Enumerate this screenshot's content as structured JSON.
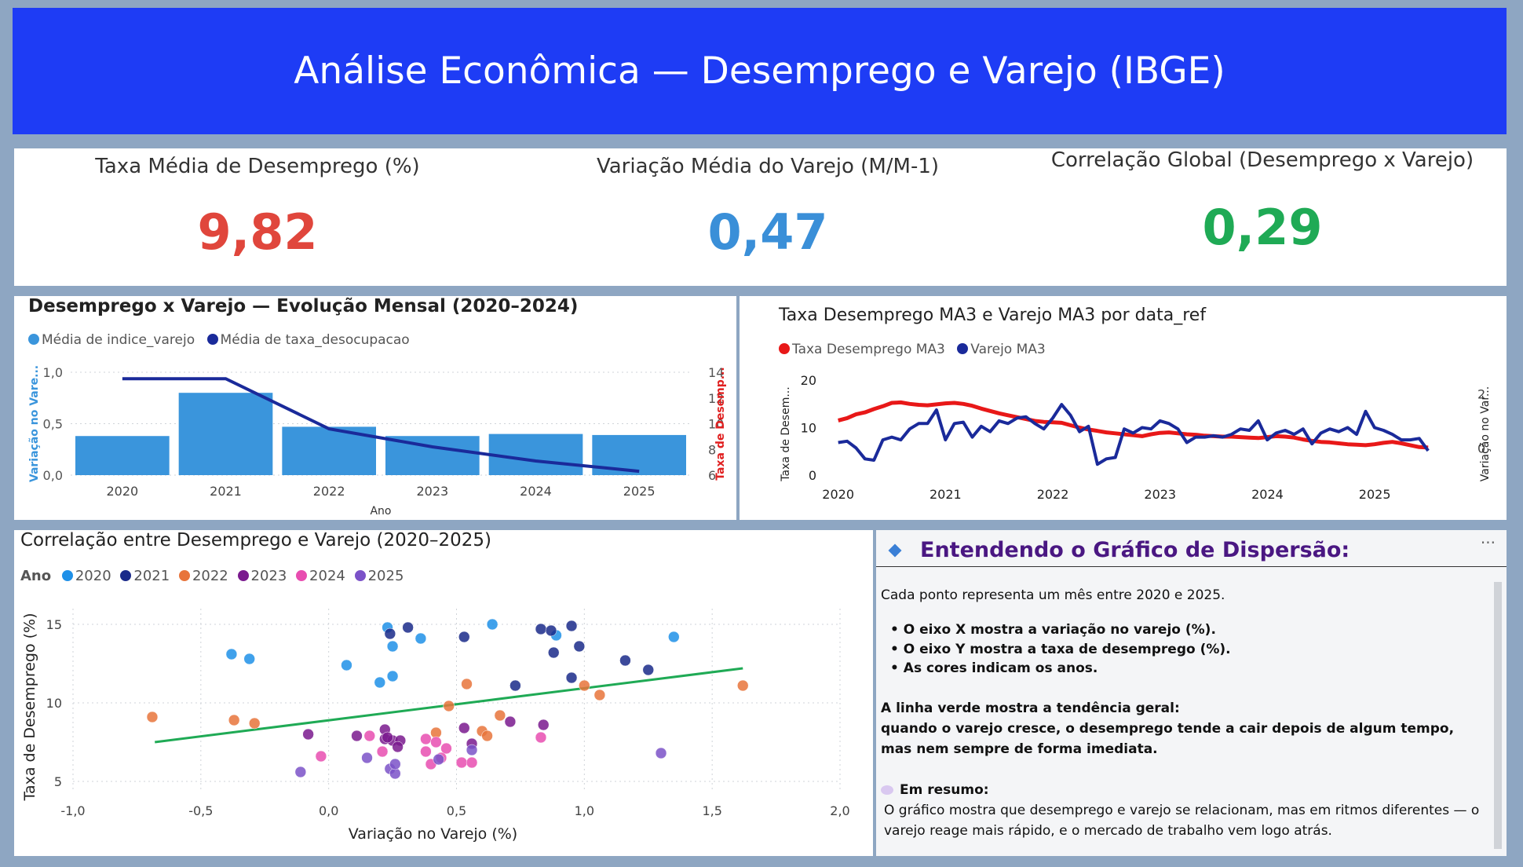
{
  "header": {
    "title": "Análise Econômica — Desemprego e Varejo (IBGE)"
  },
  "kpis": [
    {
      "label": "Taxa Média de Desemprego (%)",
      "value": "9,82",
      "color": "#e0463c"
    },
    {
      "label": "Variação Média do Varejo (M/M-1)",
      "value": "0,47",
      "color": "#3a8fd8"
    },
    {
      "label": "Correlação Global (Desemprego x Varejo)",
      "value": "0,29",
      "color": "#1faa55"
    }
  ],
  "chart_data": [
    {
      "type": "bar",
      "title": "Desemprego x Varejo — Evolução Mensal (2020–2024)",
      "legend": [
        "Média de indice_varejo",
        "Média de taxa_desocupacao"
      ],
      "xlabel": "Ano",
      "ylabel": "Variação no Vare...",
      "y2label": "Taxa de Desemp...",
      "categories": [
        "2020",
        "2021",
        "2022",
        "2023",
        "2024",
        "2025"
      ],
      "series": [
        {
          "name": "Média de indice_varejo",
          "type": "bar",
          "axis": "left",
          "color": "#3a95dc",
          "values": [
            0.38,
            0.8,
            0.47,
            0.38,
            0.4,
            0.39
          ]
        },
        {
          "name": "Média de taxa_desocupacao",
          "type": "line",
          "axis": "right",
          "color": "#1a2a9a",
          "values": [
            13.5,
            13.5,
            9.6,
            8.2,
            7.1,
            6.3
          ]
        }
      ],
      "ylim": [
        0,
        1
      ],
      "y2lim": [
        6,
        14
      ],
      "yticks": [
        "0,0",
        "0,5",
        "1,0"
      ],
      "y2ticks": [
        "6",
        "8",
        "10",
        "12",
        "14"
      ]
    },
    {
      "type": "line",
      "title": "Taxa Desemprego MA3 e Varejo MA3 por data_ref",
      "legend": [
        "Taxa Desemprego MA3",
        "Varejo MA3"
      ],
      "ylabel": "Taxa de Desem...",
      "y2label": "Variação no Var...",
      "xticks": [
        "2020",
        "2021",
        "2022",
        "2023",
        "2024",
        "2025"
      ],
      "yticks": [
        "0",
        "10",
        "20"
      ],
      "y2ticks": [
        "0",
        "2"
      ],
      "ylim": [
        0,
        20
      ],
      "y2lim": [
        -1,
        2.5
      ],
      "x_start": 2020.0,
      "x_step": 0.0833,
      "series": [
        {
          "name": "Taxa Desemprego MA3",
          "axis": "left",
          "color": "#e81818",
          "values": [
            11.5,
            12.0,
            12.8,
            13.2,
            13.9,
            14.5,
            15.2,
            15.3,
            15.0,
            14.8,
            14.7,
            14.9,
            15.1,
            15.2,
            15.0,
            14.6,
            14.0,
            13.5,
            13.0,
            12.6,
            12.2,
            11.8,
            11.4,
            11.2,
            11.1,
            11.0,
            10.5,
            10.0,
            9.6,
            9.3,
            9.0,
            8.8,
            8.6,
            8.4,
            8.2,
            8.6,
            8.9,
            9.0,
            8.8,
            8.6,
            8.5,
            8.3,
            8.2,
            8.1,
            8.1,
            8.0,
            7.9,
            7.8,
            8.0,
            8.2,
            8.1,
            7.9,
            7.5,
            7.2,
            7.0,
            6.9,
            6.7,
            6.5,
            6.4,
            6.3,
            6.5,
            6.8,
            7.0,
            6.7,
            6.3,
            5.9,
            5.8
          ]
        },
        {
          "name": "Varejo MA3",
          "axis": "right",
          "color": "#1a2a9a",
          "values": [
            0.2,
            0.25,
            0.0,
            -0.4,
            -0.45,
            0.3,
            0.4,
            0.3,
            0.7,
            0.9,
            0.9,
            1.4,
            0.3,
            0.9,
            0.95,
            0.4,
            0.8,
            0.6,
            1.0,
            0.9,
            1.1,
            1.15,
            0.9,
            0.7,
            1.1,
            1.6,
            1.2,
            0.6,
            0.8,
            -0.6,
            -0.4,
            -0.35,
            0.7,
            0.55,
            0.75,
            0.7,
            1.0,
            0.9,
            0.7,
            0.2,
            0.4,
            0.4,
            0.45,
            0.4,
            0.5,
            0.7,
            0.65,
            1.0,
            0.3,
            0.55,
            0.65,
            0.5,
            0.7,
            0.15,
            0.55,
            0.7,
            0.6,
            0.75,
            0.5,
            1.35,
            0.75,
            0.65,
            0.5,
            0.3,
            0.3,
            0.35,
            -0.1
          ]
        }
      ]
    },
    {
      "type": "scatter",
      "title": "Correlação entre Desemprego e Varejo (2020–2025)",
      "legend_title": "Ano",
      "xlabel": "Variação no Varejo (%)",
      "ylabel": "Taxa de Desemprego (%)",
      "xlim": [
        -1.0,
        2.0
      ],
      "ylim": [
        4.5,
        16
      ],
      "xticks": [
        "-1,0",
        "-0,5",
        "0,0",
        "0,5",
        "1,0",
        "1,5",
        "2,0"
      ],
      "yticks": [
        "5",
        "10",
        "15"
      ],
      "trendline": {
        "color": "#1faa55",
        "from": [
          -0.68,
          7.5
        ],
        "to": [
          1.62,
          12.2
        ]
      },
      "series": [
        {
          "name": "2020",
          "color": "#1e90e8",
          "points": [
            [
              -0.38,
              13.1
            ],
            [
              -0.31,
              12.8
            ],
            [
              0.07,
              12.4
            ],
            [
              0.23,
              14.8
            ],
            [
              0.25,
              13.6
            ],
            [
              0.36,
              14.1
            ],
            [
              0.2,
              11.3
            ],
            [
              0.25,
              11.7
            ],
            [
              0.64,
              15.0
            ],
            [
              0.89,
              14.3
            ],
            [
              1.35,
              14.2
            ]
          ]
        },
        {
          "name": "2021",
          "color": "#1a2a8a",
          "points": [
            [
              0.24,
              14.4
            ],
            [
              0.31,
              14.8
            ],
            [
              0.53,
              14.2
            ],
            [
              0.83,
              14.7
            ],
            [
              0.87,
              14.6
            ],
            [
              0.95,
              14.9
            ],
            [
              0.98,
              13.6
            ],
            [
              0.88,
              13.2
            ],
            [
              1.16,
              12.7
            ],
            [
              1.25,
              12.1
            ],
            [
              0.73,
              11.1
            ],
            [
              0.95,
              11.6
            ]
          ]
        },
        {
          "name": "2022",
          "color": "#e8743b",
          "points": [
            [
              -0.69,
              9.1
            ],
            [
              -0.37,
              8.9
            ],
            [
              -0.29,
              8.7
            ],
            [
              0.47,
              9.8
            ],
            [
              0.54,
              11.2
            ],
            [
              0.67,
              9.2
            ],
            [
              1.0,
              11.1
            ],
            [
              1.06,
              10.5
            ],
            [
              1.62,
              11.1
            ],
            [
              0.42,
              8.1
            ],
            [
              0.6,
              8.2
            ],
            [
              0.62,
              7.9
            ]
          ]
        },
        {
          "name": "2023",
          "color": "#7a1a8e",
          "points": [
            [
              -0.08,
              8.0
            ],
            [
              0.11,
              7.9
            ],
            [
              0.22,
              8.3
            ],
            [
              0.22,
              7.7
            ],
            [
              0.25,
              7.6
            ],
            [
              0.28,
              7.6
            ],
            [
              0.53,
              8.4
            ],
            [
              0.56,
              7.4
            ],
            [
              0.71,
              8.8
            ],
            [
              0.84,
              8.6
            ],
            [
              0.27,
              7.2
            ],
            [
              0.23,
              7.8
            ]
          ]
        },
        {
          "name": "2024",
          "color": "#e84db0",
          "points": [
            [
              -0.03,
              6.6
            ],
            [
              0.16,
              7.9
            ],
            [
              0.21,
              6.9
            ],
            [
              0.38,
              7.7
            ],
            [
              0.38,
              6.9
            ],
            [
              0.4,
              6.1
            ],
            [
              0.42,
              7.5
            ],
            [
              0.46,
              7.1
            ],
            [
              0.52,
              6.2
            ],
            [
              0.56,
              6.2
            ],
            [
              0.83,
              7.8
            ],
            [
              0.44,
              6.5
            ]
          ]
        },
        {
          "name": "2025",
          "color": "#7b52c8",
          "points": [
            [
              -0.11,
              5.6
            ],
            [
              0.15,
              6.5
            ],
            [
              0.24,
              5.8
            ],
            [
              0.26,
              5.5
            ],
            [
              0.26,
              6.1
            ],
            [
              0.56,
              7.0
            ],
            [
              1.3,
              6.8
            ],
            [
              0.43,
              6.4
            ]
          ]
        }
      ]
    }
  ],
  "explain": {
    "title": "Entendendo o Gráfico de Dispersão:",
    "more_icon": "more-options-icon",
    "intro": "Cada ponto representa um mês entre 2020 e 2025.",
    "bullets": [
      "• O eixo X mostra a variação no varejo (%).",
      "• O eixo Y mostra a taxa de desemprego (%).",
      "• As cores indicam os anos."
    ],
    "trend_heading": "A linha verde mostra a tendência geral:",
    "trend_text": " quando o varejo cresce, o desemprego tende a cair depois de algum tempo, mas nem sempre de forma imediata.",
    "summary_icon": "speech-bubble-icon",
    "summary_heading": "Em resumo:",
    "summary_text": "O gráfico mostra que desemprego e varejo se relacionam, mas em ritmos diferentes — o varejo reage mais rápido, e o mercado de trabalho vem logo atrás."
  }
}
